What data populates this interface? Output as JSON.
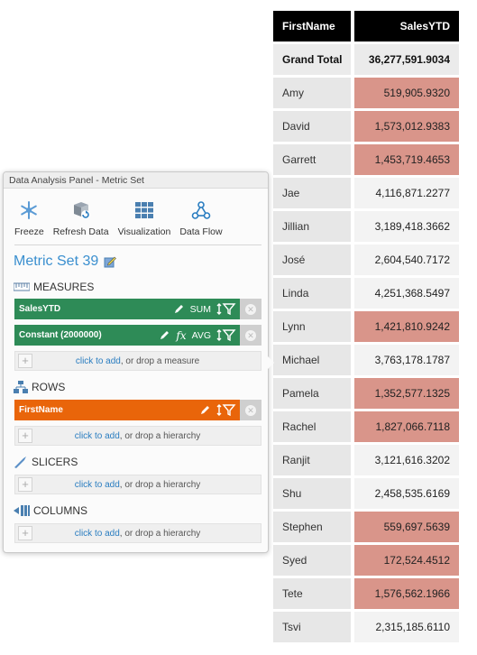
{
  "table": {
    "headers": [
      "FirstName",
      "SalesYTD"
    ],
    "total": {
      "label": "Grand Total",
      "value": "36,277,591.9034"
    },
    "rows": [
      {
        "name": "Amy",
        "value": "519,905.9320",
        "highlight": true
      },
      {
        "name": "David",
        "value": "1,573,012.9383",
        "highlight": true
      },
      {
        "name": "Garrett",
        "value": "1,453,719.4653",
        "highlight": true
      },
      {
        "name": "Jae",
        "value": "4,116,871.2277",
        "highlight": false
      },
      {
        "name": "Jillian",
        "value": "3,189,418.3662",
        "highlight": false
      },
      {
        "name": "José",
        "value": "2,604,540.7172",
        "highlight": false
      },
      {
        "name": "Linda",
        "value": "4,251,368.5497",
        "highlight": false
      },
      {
        "name": "Lynn",
        "value": "1,421,810.9242",
        "highlight": true
      },
      {
        "name": "Michael",
        "value": "3,763,178.1787",
        "highlight": false
      },
      {
        "name": "Pamela",
        "value": "1,352,577.1325",
        "highlight": true
      },
      {
        "name": "Rachel",
        "value": "1,827,066.7118",
        "highlight": true
      },
      {
        "name": "Ranjit",
        "value": "3,121,616.3202",
        "highlight": false
      },
      {
        "name": "Shu",
        "value": "2,458,535.6169",
        "highlight": false
      },
      {
        "name": "Stephen",
        "value": "559,697.5639",
        "highlight": true
      },
      {
        "name": "Syed",
        "value": "172,524.4512",
        "highlight": true
      },
      {
        "name": "Tete",
        "value": "1,576,562.1966",
        "highlight": true
      },
      {
        "name": "Tsvi",
        "value": "2,315,185.6110",
        "highlight": false
      }
    ],
    "colors": {
      "header_bg": "#000000",
      "highlight": "#d9958a"
    }
  },
  "panel": {
    "title": "Data Analysis Panel - Metric Set",
    "toolbar": {
      "freeze": "Freeze",
      "refresh": "Refresh Data",
      "visualization": "Visualization",
      "dataflow": "Data Flow"
    },
    "metric_set": "Metric Set 39",
    "measures": {
      "heading": "MEASURES",
      "items": [
        {
          "label": "SalesYTD",
          "agg": "SUM"
        },
        {
          "label": "Constant (2000000)",
          "agg": "AVG"
        }
      ],
      "drop": {
        "link": "click to add",
        "rest": ", or drop a measure"
      }
    },
    "rows": {
      "heading": "ROWS",
      "items": [
        {
          "label": "FirstName"
        }
      ],
      "drop": {
        "link": "click to add",
        "rest": ", or drop a hierarchy"
      }
    },
    "slicers": {
      "heading": "SLICERS",
      "drop": {
        "link": "click to add",
        "rest": ", or drop a hierarchy"
      }
    },
    "columns": {
      "heading": "COLUMNS",
      "drop": {
        "link": "click to add",
        "rest": ", or drop a hierarchy"
      }
    },
    "colors": {
      "measure": "#2e8b57",
      "row": "#e9650a",
      "accent": "#3a8fcf"
    }
  }
}
